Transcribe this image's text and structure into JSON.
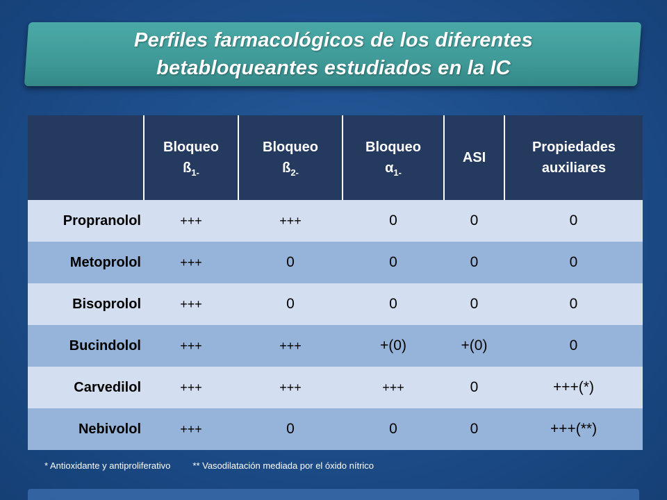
{
  "title": {
    "line1": "Perfiles farmacológicos de los diferentes",
    "line2": "betabloqueantes estudiados en la IC"
  },
  "table": {
    "headers": [
      {
        "main": "",
        "sub": ""
      },
      {
        "main": "Bloqueo",
        "line2": "ß",
        "sub": "1-"
      },
      {
        "main": "Bloqueo",
        "line2": "ß",
        "sub": "2-"
      },
      {
        "main": "Bloqueo",
        "line2": "α",
        "sub": "1-"
      },
      {
        "main": "ASI",
        "line2": "",
        "sub": ""
      },
      {
        "main": "Propiedades",
        "line2": "auxiliares",
        "sub": ""
      }
    ],
    "rows": [
      {
        "name": "Propranolol",
        "b1": "+++",
        "b2": "+++",
        "a1": "0",
        "asi": "0",
        "aux": "0"
      },
      {
        "name": "Metoprolol",
        "b1": "+++",
        "b2": "0",
        "a1": "0",
        "asi": "0",
        "aux": "0"
      },
      {
        "name": "Bisoprolol",
        "b1": "+++",
        "b2": "0",
        "a1": "0",
        "asi": "0",
        "aux": "0"
      },
      {
        "name": "Bucindolol",
        "b1": "+++",
        "b2": "+++",
        "a1": "+(0)",
        "asi": "+(0)",
        "aux": "0"
      },
      {
        "name": "Carvedilol",
        "b1": "+++",
        "b2": "+++",
        "a1": "+++",
        "asi": "0",
        "aux": "+++(*)"
      },
      {
        "name": "Nebivolol",
        "b1": "+++",
        "b2": "0",
        "a1": "0",
        "asi": "0",
        "aux": "+++(**)"
      }
    ]
  },
  "footnotes": {
    "note1": "* Antioxidante y antiproliferativo",
    "note2": "** Vasodilatación mediada por el óxido nítrico"
  },
  "colors": {
    "background": "#1e4f8d",
    "banner": "#3f9a98",
    "header": "#243a5e",
    "row_light": "#d3dff0",
    "row_dark": "#96b4d9"
  }
}
